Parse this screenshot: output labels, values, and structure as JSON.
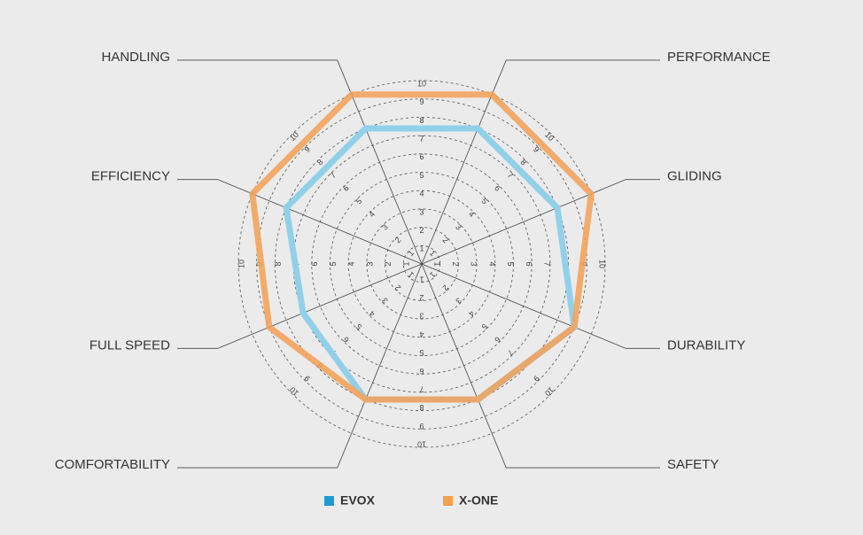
{
  "chart_data": {
    "type": "radar",
    "categories": [
      "PERFORMANCE",
      "GLIDING",
      "DURABILITY",
      "SAFETY",
      "COMFORTABILITY",
      "FULL SPEED",
      "EFFICIENCY",
      "HANDLING"
    ],
    "series": [
      {
        "name": "EVOX",
        "color": "#1e9ad6",
        "line_color": "#92d0ea",
        "values": [
          8,
          8,
          9,
          8,
          8,
          7,
          8,
          8
        ]
      },
      {
        "name": "X-ONE",
        "color": "#f5a04a",
        "line_color": "#f4a25a",
        "values": [
          10,
          10,
          9,
          8,
          8,
          9,
          10,
          10
        ]
      }
    ],
    "rlim": [
      0,
      10
    ],
    "rticks": [
      1,
      2,
      3,
      4,
      5,
      6,
      7,
      8,
      9,
      10
    ]
  }
}
